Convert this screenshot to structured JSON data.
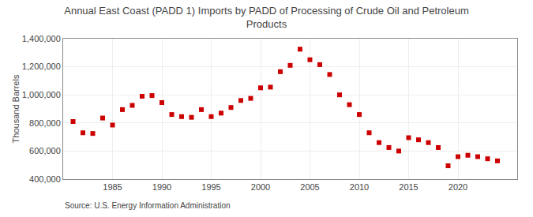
{
  "chart_data": {
    "type": "scatter",
    "title": "Annual East Coast (PADD 1) Imports by PADD of Processing of Crude Oil and Petroleum\nProducts",
    "y_label": "Thousand Barrels",
    "annotations": [
      "Source: U.S. Energy Information Administration"
    ],
    "x": [
      1981,
      1982,
      1983,
      1984,
      1985,
      1986,
      1987,
      1988,
      1989,
      1990,
      1991,
      1992,
      1993,
      1994,
      1995,
      1996,
      1997,
      1998,
      1999,
      2000,
      2001,
      2002,
      2003,
      2004,
      2005,
      2006,
      2007,
      2008,
      2009,
      2010,
      2011,
      2012,
      2013,
      2014,
      2015,
      2016,
      2017,
      2018,
      2019,
      2020,
      2021,
      2022,
      2023,
      2024
    ],
    "values": [
      810000,
      730000,
      725000,
      835000,
      785000,
      895000,
      925000,
      990000,
      995000,
      945000,
      860000,
      845000,
      840000,
      895000,
      845000,
      870000,
      910000,
      960000,
      975000,
      1050000,
      1055000,
      1165000,
      1210000,
      1325000,
      1250000,
      1215000,
      1145000,
      1000000,
      930000,
      860000,
      730000,
      660000,
      625000,
      600000,
      695000,
      680000,
      660000,
      625000,
      495000,
      560000,
      570000,
      560000,
      545000,
      530000
    ],
    "color": "#cc0000",
    "marker": "square",
    "xlim": [
      1980,
      2026
    ],
    "xticks": [
      1985,
      1990,
      1995,
      2000,
      2005,
      2010,
      2015,
      2020
    ],
    "ylim": [
      400000,
      1400000
    ],
    "yticks": [
      {
        "value": 400000,
        "label": "400,000"
      },
      {
        "value": 600000,
        "label": "600,000"
      },
      {
        "value": 800000,
        "label": "800,000"
      },
      {
        "value": 1000000,
        "label": "1,000,000"
      },
      {
        "value": 1200000,
        "label": "1,200,000"
      },
      {
        "value": 1400000,
        "label": "1,400,000"
      }
    ],
    "grid": true
  }
}
